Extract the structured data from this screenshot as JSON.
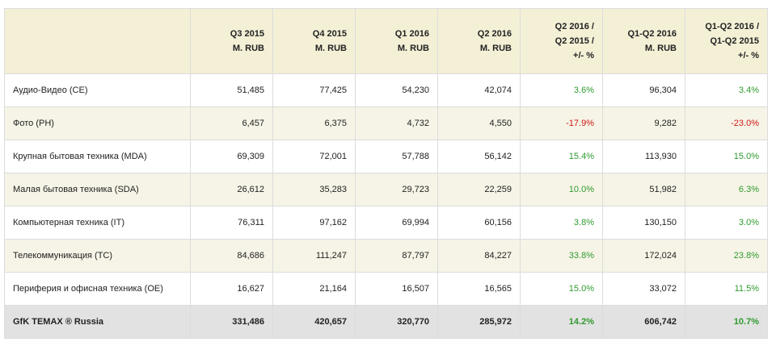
{
  "table": {
    "header": [
      [
        "Q3 2015",
        "M. RUB"
      ],
      [
        "Q4 2015",
        "M. RUB"
      ],
      [
        "Q1 2016",
        "M. RUB"
      ],
      [
        "Q2 2016",
        "M. RUB"
      ],
      [
        "Q2 2016 /",
        "Q2 2015 /",
        "+/- %"
      ],
      [
        "Q1-Q2 2016",
        "M. RUB"
      ],
      [
        "Q1-Q2 2016 /",
        "Q1-Q2 2015",
        "+/- %"
      ]
    ],
    "rows": [
      [
        "Аудио-Видео (CE)",
        "51,485",
        "77,425",
        "54,230",
        "42,074",
        "3.6%",
        "96,304",
        "3.4%"
      ],
      [
        "Фото (PH)",
        "6,457",
        "6,375",
        "4,732",
        "4,550",
        "-17.9%",
        "9,282",
        "-23.0%"
      ],
      [
        "Крупная бытовая техника (MDA)",
        "69,309",
        "72,001",
        "57,788",
        "56,142",
        "15.4%",
        "113,930",
        "15.0%"
      ],
      [
        "Малая бытовая техника (SDA)",
        "26,612",
        "35,283",
        "29,723",
        "22,259",
        "10.0%",
        "51,982",
        "6.3%"
      ],
      [
        "Компьютерная техника (IT)",
        "76,311",
        "97,162",
        "69,994",
        "60,156",
        "3.8%",
        "130,150",
        "3.0%"
      ],
      [
        "Телекоммуникация (TC)",
        "84,686",
        "111,247",
        "87,797",
        "84,227",
        "33.8%",
        "172,024",
        "23.8%"
      ],
      [
        "Периферия и офисная техника (OE)",
        "16,627",
        "21,164",
        "16,507",
        "16,565",
        "15.0%",
        "33,072",
        "11.5%"
      ]
    ],
    "total": [
      "GfK TEMAX ® Russia",
      "331,486",
      "420,657",
      "320,770",
      "285,972",
      "14.2%",
      "606,742",
      "10.7%"
    ]
  }
}
